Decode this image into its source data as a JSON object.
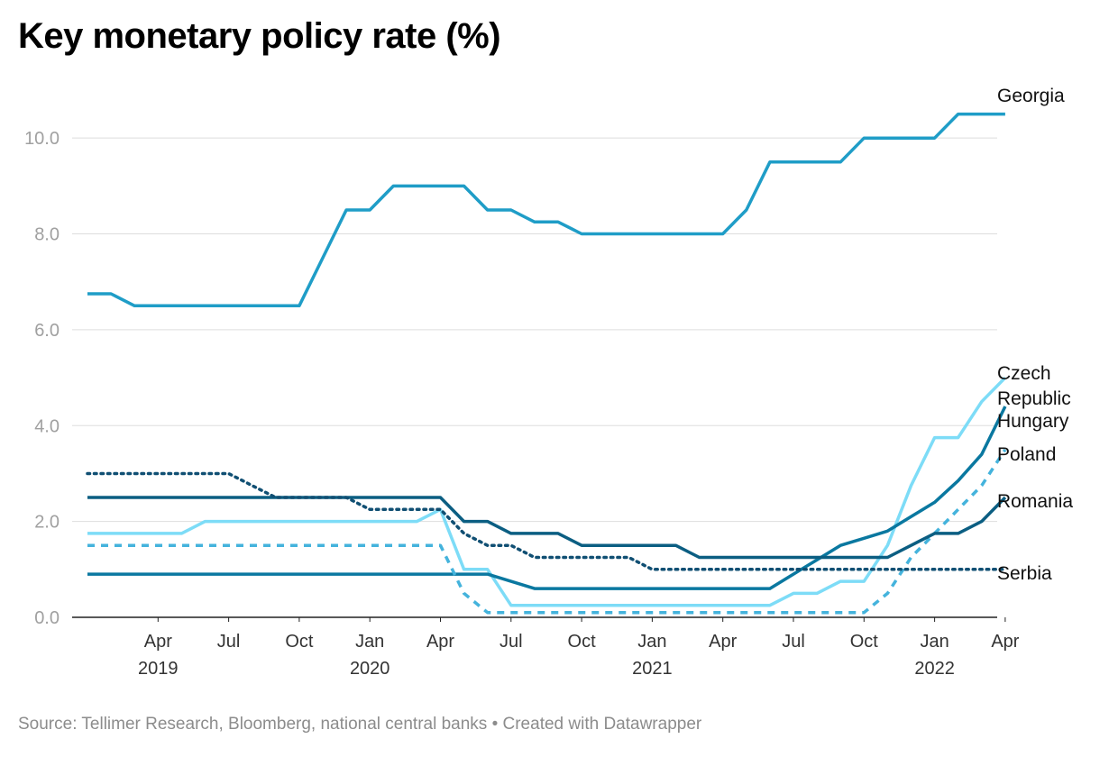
{
  "title": "Key monetary policy rate (%)",
  "source": "Source: Tellimer Research, Bloomberg, national central banks • Created with Datawrapper",
  "chart_data": {
    "type": "line",
    "ylim": [
      0,
      11
    ],
    "yticks": [
      {
        "value": 0,
        "label": "0.0"
      },
      {
        "value": 2,
        "label": "2.0"
      },
      {
        "value": 4,
        "label": "4.0"
      },
      {
        "value": 6,
        "label": "6.0"
      },
      {
        "value": 8,
        "label": "8.0"
      },
      {
        "value": 10,
        "label": "10.0"
      }
    ],
    "xticks": [
      {
        "date": "2019-04",
        "label": "Apr",
        "year": "2019"
      },
      {
        "date": "2019-07",
        "label": "Jul",
        "year": ""
      },
      {
        "date": "2019-10",
        "label": "Oct",
        "year": ""
      },
      {
        "date": "2020-01",
        "label": "Jan",
        "year": "2020"
      },
      {
        "date": "2020-04",
        "label": "Apr",
        "year": ""
      },
      {
        "date": "2020-07",
        "label": "Jul",
        "year": ""
      },
      {
        "date": "2020-10",
        "label": "Oct",
        "year": ""
      },
      {
        "date": "2021-01",
        "label": "Jan",
        "year": "2021"
      },
      {
        "date": "2021-04",
        "label": "Apr",
        "year": ""
      },
      {
        "date": "2021-07",
        "label": "Jul",
        "year": ""
      },
      {
        "date": "2021-10",
        "label": "Oct",
        "year": ""
      },
      {
        "date": "2022-01",
        "label": "Jan",
        "year": "2022"
      },
      {
        "date": "2022-04",
        "label": "Apr",
        "year": ""
      }
    ],
    "grid": true,
    "legend": "direct labels at right",
    "x": [
      "2019-01",
      "2019-02",
      "2019-03",
      "2019-04",
      "2019-05",
      "2019-06",
      "2019-07",
      "2019-08",
      "2019-09",
      "2019-10",
      "2019-11",
      "2019-12",
      "2020-01",
      "2020-02",
      "2020-03",
      "2020-04",
      "2020-05",
      "2020-06",
      "2020-07",
      "2020-08",
      "2020-09",
      "2020-10",
      "2020-11",
      "2020-12",
      "2021-01",
      "2021-02",
      "2021-03",
      "2021-04",
      "2021-05",
      "2021-06",
      "2021-07",
      "2021-08",
      "2021-09",
      "2021-10",
      "2021-11",
      "2021-12",
      "2022-01",
      "2022-02",
      "2022-03",
      "2022-04"
    ],
    "series": [
      {
        "name": "Georgia",
        "color": "#1f9dc7",
        "dash": "solid",
        "values": [
          6.75,
          6.75,
          6.5,
          6.5,
          6.5,
          6.5,
          6.5,
          6.5,
          6.5,
          6.5,
          7.5,
          8.5,
          8.5,
          9,
          9,
          9,
          9,
          8.5,
          8.5,
          8.25,
          8.25,
          8,
          8,
          8,
          8,
          8,
          8,
          8,
          8.5,
          9.5,
          9.5,
          9.5,
          9.5,
          10,
          10,
          10,
          10,
          10.5,
          10.5,
          10.5
        ]
      },
      {
        "name": "Czech Republic",
        "color": "#7ddcf7",
        "dash": "solid",
        "values": [
          1.75,
          1.75,
          1.75,
          1.75,
          1.75,
          2,
          2,
          2,
          2,
          2,
          2,
          2,
          2,
          2,
          2,
          2.25,
          1,
          1,
          0.25,
          0.25,
          0.25,
          0.25,
          0.25,
          0.25,
          0.25,
          0.25,
          0.25,
          0.25,
          0.25,
          0.25,
          0.5,
          0.5,
          0.75,
          0.75,
          1.5,
          2.75,
          3.75,
          3.75,
          4.5,
          5
        ]
      },
      {
        "name": "Hungary",
        "color": "#0a78a0",
        "dash": "solid",
        "values": [
          0.9,
          0.9,
          0.9,
          0.9,
          0.9,
          0.9,
          0.9,
          0.9,
          0.9,
          0.9,
          0.9,
          0.9,
          0.9,
          0.9,
          0.9,
          0.9,
          0.9,
          0.9,
          0.75,
          0.6,
          0.6,
          0.6,
          0.6,
          0.6,
          0.6,
          0.6,
          0.6,
          0.6,
          0.6,
          0.6,
          0.9,
          1.2,
          1.5,
          1.65,
          1.8,
          2.1,
          2.4,
          2.85,
          3.4,
          4.4
        ]
      },
      {
        "name": "Poland",
        "color": "#44b3dc",
        "dash": "dashed",
        "values": [
          1.5,
          1.5,
          1.5,
          1.5,
          1.5,
          1.5,
          1.5,
          1.5,
          1.5,
          1.5,
          1.5,
          1.5,
          1.5,
          1.5,
          1.5,
          1.5,
          0.5,
          0.1,
          0.1,
          0.1,
          0.1,
          0.1,
          0.1,
          0.1,
          0.1,
          0.1,
          0.1,
          0.1,
          0.1,
          0.1,
          0.1,
          0.1,
          0.1,
          0.1,
          0.5,
          1.25,
          1.75,
          2.25,
          2.75,
          3.5
        ]
      },
      {
        "name": "Romania",
        "color": "#0b5e82",
        "dash": "solid",
        "values": [
          2.5,
          2.5,
          2.5,
          2.5,
          2.5,
          2.5,
          2.5,
          2.5,
          2.5,
          2.5,
          2.5,
          2.5,
          2.5,
          2.5,
          2.5,
          2.5,
          2,
          2,
          1.75,
          1.75,
          1.75,
          1.5,
          1.5,
          1.5,
          1.5,
          1.5,
          1.25,
          1.25,
          1.25,
          1.25,
          1.25,
          1.25,
          1.25,
          1.25,
          1.25,
          1.5,
          1.75,
          1.75,
          2,
          2.5
        ]
      },
      {
        "name": "Serbia",
        "color": "#104f73",
        "dash": "dotted",
        "values": [
          3,
          3,
          3,
          3,
          3,
          3,
          3,
          2.75,
          2.5,
          2.5,
          2.5,
          2.5,
          2.25,
          2.25,
          2.25,
          2.25,
          1.75,
          1.5,
          1.5,
          1.25,
          1.25,
          1.25,
          1.25,
          1.25,
          1,
          1,
          1,
          1,
          1,
          1,
          1,
          1,
          1,
          1,
          1,
          1,
          1,
          1,
          1,
          1
        ]
      }
    ],
    "end_labels": [
      {
        "series": "Georgia",
        "lines": [
          "Georgia"
        ]
      },
      {
        "series": "Czech Republic",
        "lines": [
          "Czech",
          "Republic"
        ]
      },
      {
        "series": "Hungary",
        "lines": [
          "Hungary"
        ]
      },
      {
        "series": "Poland",
        "lines": [
          "Poland"
        ]
      },
      {
        "series": "Romania",
        "lines": [
          "Romania"
        ]
      },
      {
        "series": "Serbia",
        "lines": [
          "Serbia"
        ]
      }
    ]
  }
}
